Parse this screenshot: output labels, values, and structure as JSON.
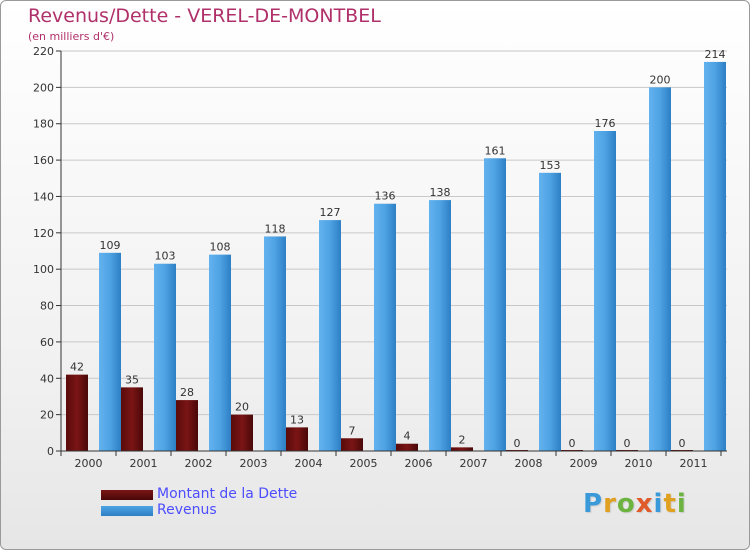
{
  "title": "Revenus/Dette - VEREL-DE-MONTBEL",
  "subtitle": "(en milliers d'€)",
  "logo_text": "Proxiti",
  "colors": {
    "title": "#b0306a",
    "dette": "#7a1515",
    "revenus": "#4ea3e3",
    "grid": "#c8c8c8",
    "legend_text": "#4d4dff"
  },
  "chart_data": {
    "type": "bar",
    "categories": [
      "2000",
      "2001",
      "2002",
      "2003",
      "2004",
      "2005",
      "2006",
      "2007",
      "2008",
      "2009",
      "2010",
      "2011"
    ],
    "series": [
      {
        "name": "Montant de la Dette",
        "values": [
          42,
          35,
          28,
          20,
          13,
          7,
          4,
          2,
          0,
          0,
          0,
          0
        ],
        "color": "#7a1515"
      },
      {
        "name": "Revenus",
        "values": [
          109,
          103,
          108,
          118,
          127,
          136,
          138,
          161,
          153,
          176,
          200,
          214
        ],
        "color": "#4ea3e3"
      }
    ],
    "yticks": [
      0,
      20,
      40,
      60,
      80,
      100,
      120,
      140,
      160,
      180,
      200,
      220
    ],
    "ylim": [
      0,
      220
    ],
    "grid": true,
    "legend": "bottom-left"
  }
}
